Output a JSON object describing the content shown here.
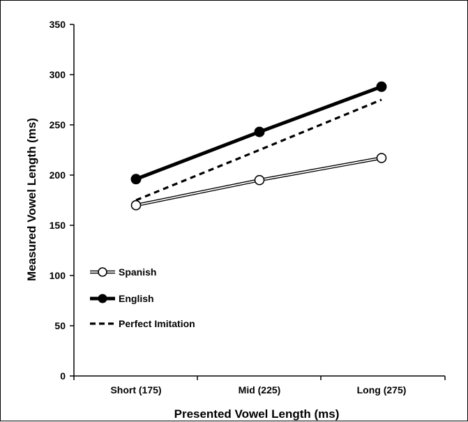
{
  "chart_data": {
    "type": "line",
    "title": "",
    "xlabel": "Presented Vowel Length (ms)",
    "ylabel": "Measured Vowel Length (ms)",
    "categories": [
      "Short (175)",
      "Mid (225)",
      "Long (275)"
    ],
    "ylim": [
      0,
      350
    ],
    "yticks": [
      0,
      50,
      100,
      150,
      200,
      250,
      300,
      350
    ],
    "grid": false,
    "legend_position": "bottom-left",
    "series": [
      {
        "name": "Spanish",
        "values": [
          170,
          195,
          217
        ],
        "style": "double-line-open-marker",
        "color": "#000000"
      },
      {
        "name": "English",
        "values": [
          196,
          243,
          288
        ],
        "style": "thick-line-filled-marker",
        "color": "#000000"
      },
      {
        "name": "Perfect Imitation",
        "values": [
          175,
          225,
          275
        ],
        "style": "dashed-no-marker",
        "color": "#000000"
      }
    ]
  }
}
